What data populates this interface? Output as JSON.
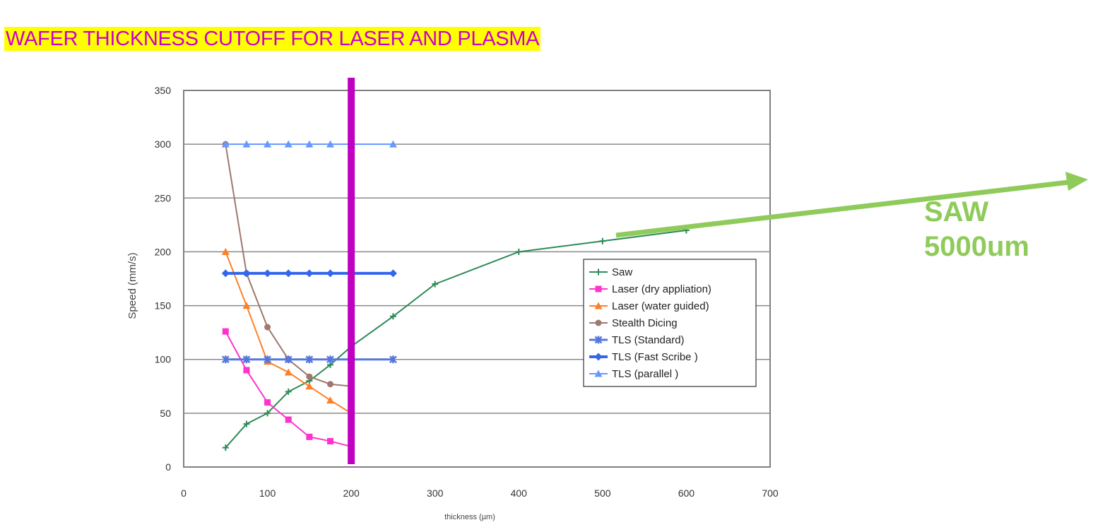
{
  "title": "WAFER THICKNESS CUTOFF FOR LASER AND PLASMA",
  "annotation": {
    "line1": "SAW",
    "line2": "5000um",
    "color": "#8fcb5a"
  },
  "cutoff_line": {
    "x": 200,
    "color": "#c000c0"
  },
  "chart_data": {
    "type": "line",
    "xlabel": "thickness (µm)",
    "ylabel": "Speed (mm/s)",
    "xlim": [
      0,
      700
    ],
    "ylim": [
      0,
      350
    ],
    "xticks": [
      0,
      100,
      200,
      300,
      400,
      500,
      600,
      700
    ],
    "yticks": [
      0,
      50,
      100,
      150,
      200,
      250,
      300,
      350
    ],
    "grid": true,
    "legend_position": "right-center",
    "series": [
      {
        "name": "Saw",
        "color": "#2e8b57",
        "marker": "plus",
        "x": [
          50,
          75,
          100,
          125,
          150,
          175,
          200,
          250,
          300,
          400,
          500,
          600
        ],
        "y": [
          18,
          40,
          50,
          70,
          80,
          95,
          112,
          140,
          170,
          200,
          210,
          220
        ]
      },
      {
        "name": "Laser (dry appliation)",
        "color": "#ff33cc",
        "marker": "square",
        "x": [
          50,
          75,
          100,
          125,
          150,
          175,
          200
        ],
        "y": [
          126,
          90,
          60,
          44,
          28,
          24,
          19
        ]
      },
      {
        "name": "Laser (water guided)",
        "color": "#ff7f27",
        "marker": "triangle",
        "x": [
          50,
          75,
          100,
          125,
          150,
          175,
          200
        ],
        "y": [
          200,
          150,
          98,
          88,
          75,
          62,
          50
        ]
      },
      {
        "name": "Stealth Dicing",
        "color": "#a0786e",
        "marker": "circle",
        "x": [
          50,
          75,
          100,
          125,
          150,
          175,
          200
        ],
        "y": [
          300,
          180,
          130,
          100,
          84,
          77,
          75
        ]
      },
      {
        "name": "TLS (Standard)",
        "color": "#5577dd",
        "marker": "star",
        "x": [
          50,
          75,
          100,
          125,
          150,
          175,
          200,
          250
        ],
        "y": [
          100,
          100,
          100,
          100,
          100,
          100,
          100,
          100
        ]
      },
      {
        "name": "TLS (Fast Scribe )",
        "color": "#3366ee",
        "marker": "diamond",
        "x": [
          50,
          75,
          100,
          125,
          150,
          175,
          200,
          250
        ],
        "y": [
          180,
          180,
          180,
          180,
          180,
          180,
          180,
          180
        ]
      },
      {
        "name": "TLS (parallel )",
        "color": "#6699ff",
        "marker": "triangle",
        "x": [
          50,
          75,
          100,
          125,
          150,
          175,
          200,
          250
        ],
        "y": [
          300,
          300,
          300,
          300,
          300,
          300,
          300,
          300
        ]
      }
    ]
  }
}
